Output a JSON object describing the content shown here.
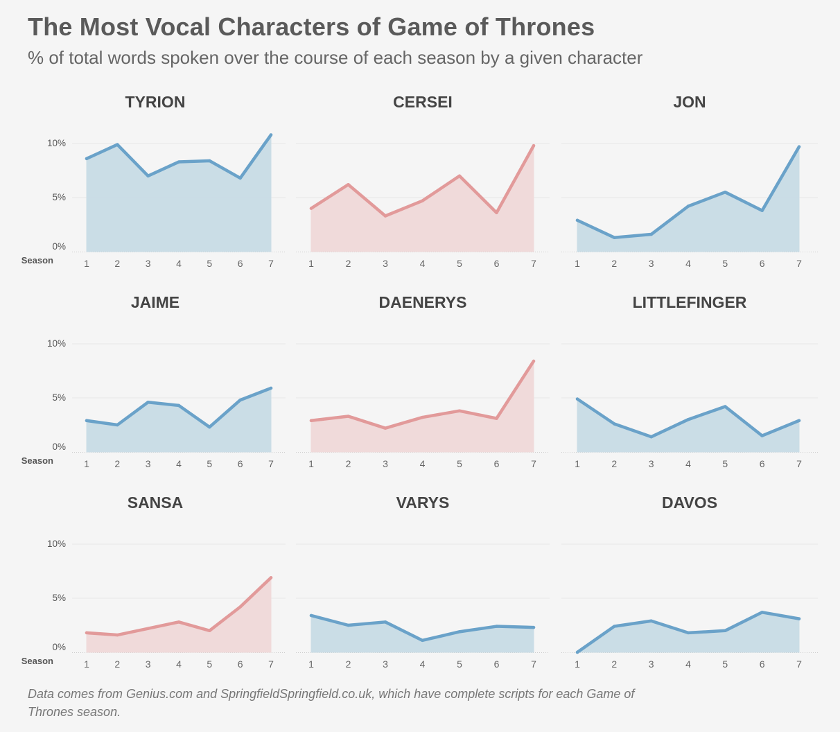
{
  "title": "The Most Vocal Characters of Game of Thrones",
  "subtitle": "% of total words spoken over the course of each season by a given character",
  "footnote": "Data comes from Genius.com and SpringfieldSpringfield.co.uk, which have complete scripts for each Game of Thrones season.",
  "colors": {
    "blue_line": "#6aa2c9",
    "blue_fill": "#c8dce6",
    "red_line": "#e29a9a",
    "red_fill": "#f0d9d9",
    "grid": "#e8e8e8",
    "axis": "#cccccc"
  },
  "chart_data": [
    {
      "type": "area",
      "title": "TYRION",
      "color": "blue",
      "x": [
        1,
        2,
        3,
        4,
        5,
        6,
        7
      ],
      "values": [
        8.6,
        9.9,
        7.0,
        8.3,
        8.4,
        6.8,
        10.8
      ],
      "ylim": [
        0,
        10
      ],
      "yticks": [
        "0%",
        "5%",
        "10%"
      ],
      "xlabel": "Season",
      "show_yaxis": true
    },
    {
      "type": "area",
      "title": "CERSEI",
      "color": "red",
      "x": [
        1,
        2,
        3,
        4,
        5,
        6,
        7
      ],
      "values": [
        4.0,
        6.2,
        3.3,
        4.7,
        7.0,
        3.6,
        9.8
      ],
      "ylim": [
        0,
        10
      ],
      "show_yaxis": false
    },
    {
      "type": "area",
      "title": "JON",
      "color": "blue",
      "x": [
        1,
        2,
        3,
        4,
        5,
        6,
        7
      ],
      "values": [
        2.9,
        1.3,
        1.6,
        4.2,
        5.5,
        3.8,
        9.7
      ],
      "ylim": [
        0,
        10
      ],
      "show_yaxis": false
    },
    {
      "type": "area",
      "title": "JAIME",
      "color": "blue",
      "x": [
        1,
        2,
        3,
        4,
        5,
        6,
        7
      ],
      "values": [
        2.9,
        2.5,
        4.6,
        4.3,
        2.3,
        4.8,
        5.9
      ],
      "ylim": [
        0,
        10
      ],
      "yticks": [
        "0%",
        "5%",
        "10%"
      ],
      "xlabel": "Season",
      "show_yaxis": true
    },
    {
      "type": "area",
      "title": "DAENERYS",
      "color": "red",
      "x": [
        1,
        2,
        3,
        4,
        5,
        6,
        7
      ],
      "values": [
        2.9,
        3.3,
        2.2,
        3.2,
        3.8,
        3.1,
        8.4
      ],
      "ylim": [
        0,
        10
      ],
      "show_yaxis": false
    },
    {
      "type": "area",
      "title": "LITTLEFINGER",
      "color": "blue",
      "x": [
        1,
        2,
        3,
        4,
        5,
        6,
        7
      ],
      "values": [
        4.9,
        2.6,
        1.4,
        3.0,
        4.2,
        1.5,
        2.9
      ],
      "ylim": [
        0,
        10
      ],
      "show_yaxis": false
    },
    {
      "type": "area",
      "title": "SANSA",
      "color": "red",
      "x": [
        1,
        2,
        3,
        4,
        5,
        6,
        7
      ],
      "values": [
        1.8,
        1.6,
        2.2,
        2.8,
        2.0,
        4.2,
        6.9
      ],
      "ylim": [
        0,
        10
      ],
      "yticks": [
        "0%",
        "5%",
        "10%"
      ],
      "xlabel": "Season",
      "show_yaxis": true
    },
    {
      "type": "area",
      "title": "VARYS",
      "color": "blue",
      "x": [
        1,
        2,
        3,
        4,
        5,
        6,
        7
      ],
      "values": [
        3.4,
        2.5,
        2.8,
        1.1,
        1.9,
        2.4,
        2.3
      ],
      "ylim": [
        0,
        10
      ],
      "show_yaxis": false
    },
    {
      "type": "area",
      "title": "DAVOS",
      "color": "blue",
      "x": [
        1,
        2,
        3,
        4,
        5,
        6,
        7
      ],
      "values": [
        0.0,
        2.4,
        2.9,
        1.8,
        2.0,
        3.7,
        3.1
      ],
      "ylim": [
        0,
        10
      ],
      "show_yaxis": false
    }
  ]
}
